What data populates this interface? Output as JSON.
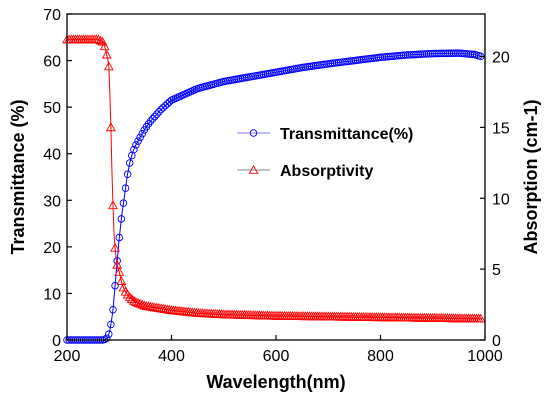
{
  "chart_data": {
    "type": "line",
    "xlabel": "Wavelength(nm)",
    "ylabel_left": "Transmittance (%)",
    "ylabel_right": "Absorption (cm-1)",
    "xlim": [
      200,
      1000
    ],
    "ylim_left": [
      0,
      70
    ],
    "ylim_right": [
      0,
      23
    ],
    "x_ticks": [
      200,
      400,
      600,
      800,
      1000
    ],
    "y_left_ticks": [
      0,
      10,
      20,
      30,
      40,
      50,
      60,
      70
    ],
    "y_right_ticks": [
      0,
      5,
      10,
      15,
      20
    ],
    "legend_position": "center-right",
    "grid": false,
    "series": [
      {
        "name": "Transmittance(%)",
        "axis": "left",
        "color": "#0000ff",
        "marker": "circle",
        "x": [
          200,
          260,
          270,
          278,
          282,
          285,
          288,
          290,
          293,
          296,
          300,
          305,
          310,
          315,
          320,
          325,
          330,
          340,
          350,
          360,
          380,
          400,
          420,
          450,
          500,
          550,
          600,
          650,
          700,
          750,
          800,
          850,
          900,
          950,
          980,
          995
        ],
        "y": [
          0,
          0,
          0,
          0.5,
          2,
          4,
          6.5,
          9,
          13,
          17,
          22,
          27,
          31,
          35,
          38,
          40,
          41.5,
          43.5,
          45.5,
          47,
          49.5,
          51.5,
          52.5,
          54,
          55.5,
          56.5,
          57.5,
          58.5,
          59.3,
          60,
          60.7,
          61.2,
          61.5,
          61.6,
          61.3,
          60.8
        ]
      },
      {
        "name": "Absorptivity",
        "axis": "right",
        "color": "#ff0000",
        "marker": "triangle",
        "x": [
          200,
          220,
          240,
          260,
          270,
          275,
          278,
          280,
          282,
          284,
          286,
          288,
          290,
          292,
          294,
          296,
          300,
          305,
          310,
          320,
          330,
          350,
          400,
          450,
          500,
          600,
          700,
          800,
          900,
          995
        ],
        "y": [
          21.2,
          21.2,
          21.2,
          21.2,
          21.0,
          20.3,
          19.8,
          19.3,
          17.5,
          15,
          12,
          9.5,
          7.5,
          6.5,
          5.8,
          5.3,
          4.8,
          4.0,
          3.5,
          3.0,
          2.7,
          2.4,
          2.1,
          1.9,
          1.8,
          1.7,
          1.65,
          1.6,
          1.55,
          1.5
        ]
      }
    ]
  }
}
